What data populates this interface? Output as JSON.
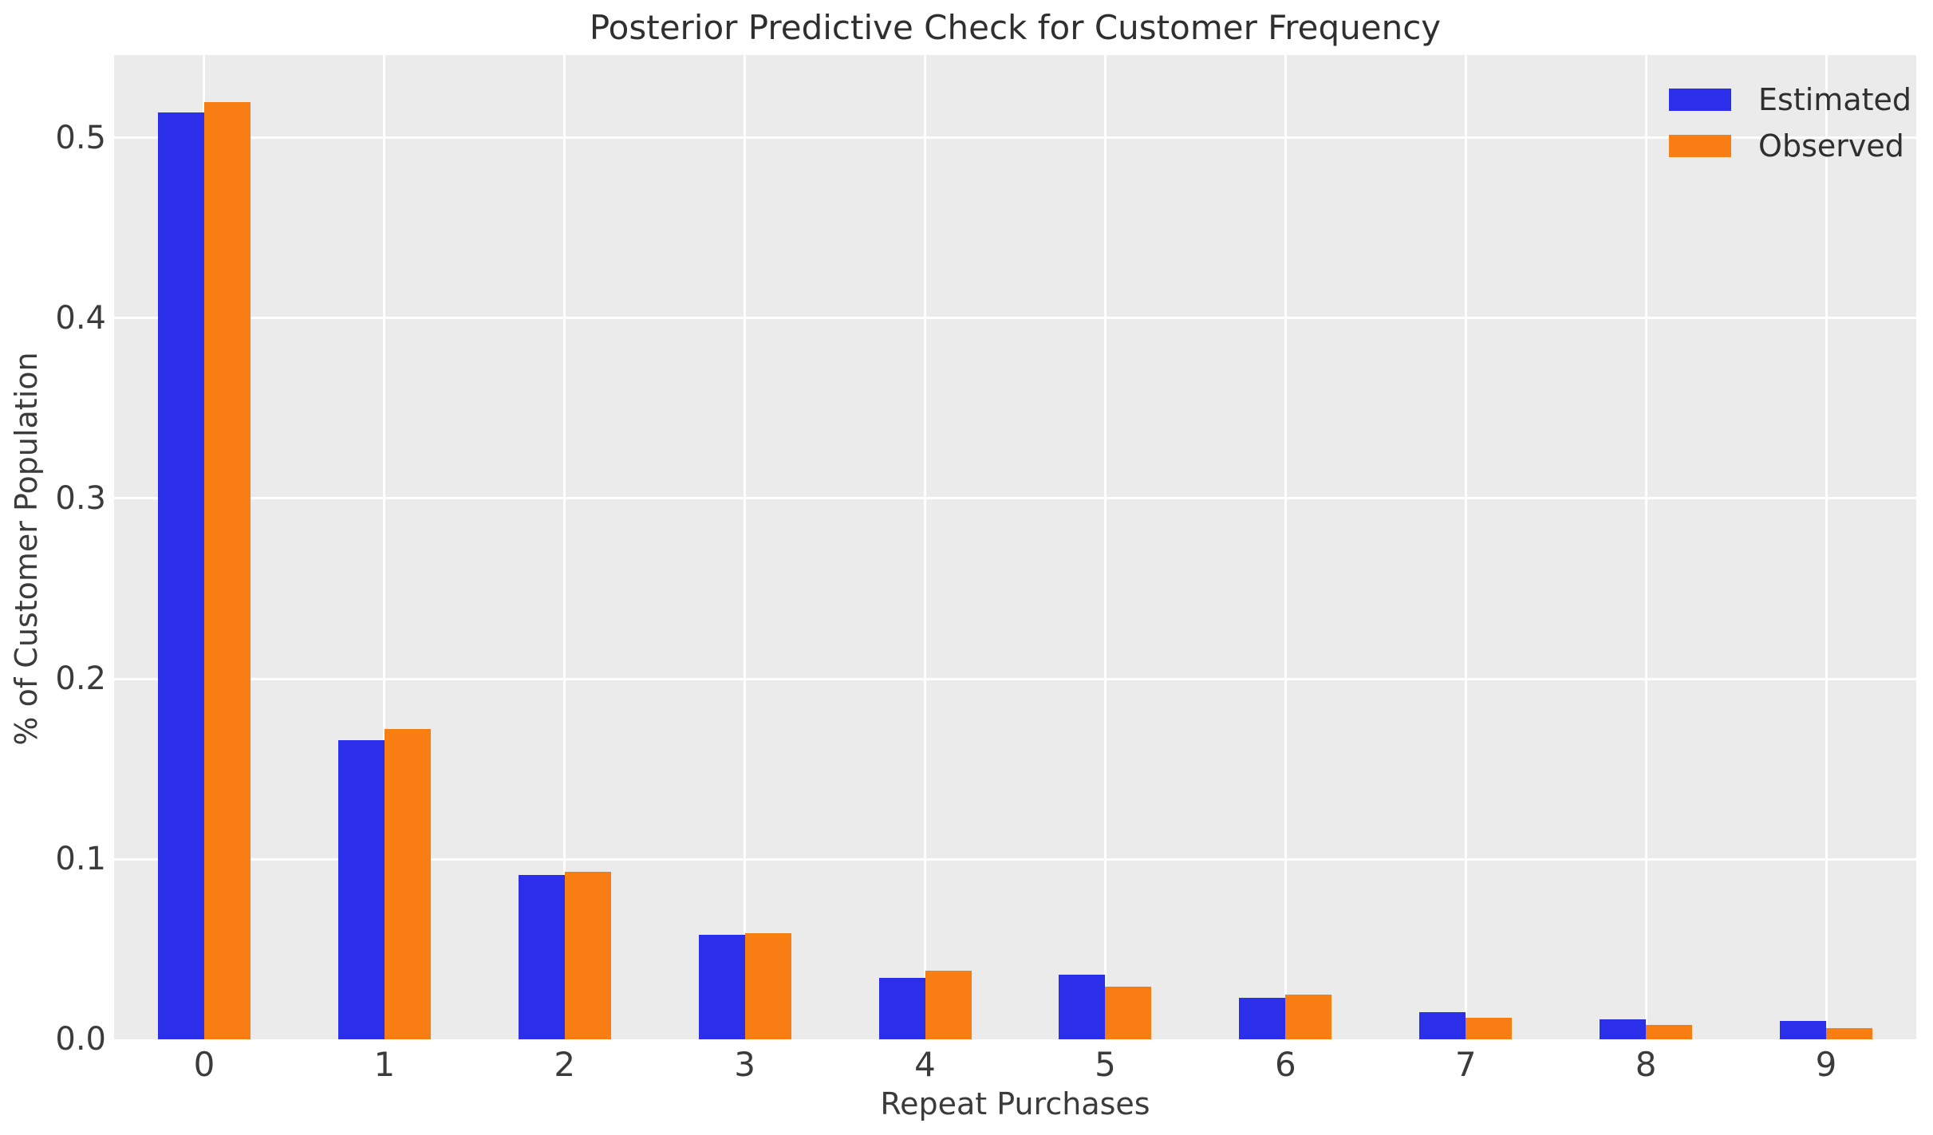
{
  "chart_data": {
    "type": "bar",
    "title": "Posterior Predictive Check for Customer Frequency",
    "xlabel": "Repeat Purchases",
    "ylabel": "% of Customer Population",
    "categories": [
      "0",
      "1",
      "2",
      "3",
      "4",
      "5",
      "6",
      "7",
      "8",
      "9"
    ],
    "series": [
      {
        "name": "Estimated",
        "color": "#2b2fe9",
        "values": [
          0.514,
          0.166,
          0.091,
          0.058,
          0.034,
          0.036,
          0.023,
          0.015,
          0.011,
          0.01
        ]
      },
      {
        "name": "Observed",
        "color": "#f87e14",
        "values": [
          0.52,
          0.172,
          0.093,
          0.059,
          0.038,
          0.029,
          0.025,
          0.012,
          0.008,
          0.006
        ]
      }
    ],
    "ytick_labels": [
      "0.0",
      "0.1",
      "0.2",
      "0.3",
      "0.4",
      "0.5"
    ],
    "ytick_values": [
      0.0,
      0.1,
      0.2,
      0.3,
      0.4,
      0.5
    ],
    "ylim": [
      0,
      0.546
    ],
    "grid": true,
    "legend_position": "upper right",
    "axes_background": "#ebebeb",
    "grid_color": "#ffffff",
    "text_color": "#3b3b3b"
  }
}
